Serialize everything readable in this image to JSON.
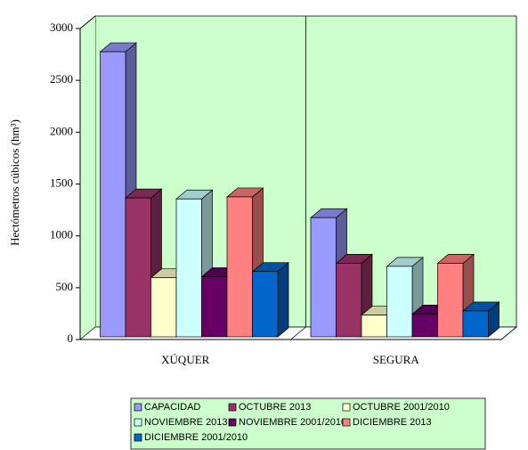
{
  "chart_data": {
    "type": "bar3d",
    "ylabel": "Hectómetros cúbicos (hm³)",
    "categories": [
      "XÚQUER",
      "SEGURA"
    ],
    "series": [
      {
        "name": "CAPACIDAD",
        "color": "#9999ff",
        "values": [
          2750,
          1150
        ]
      },
      {
        "name": "OCTUBRE 2013",
        "color": "#993366",
        "values": [
          1340,
          710
        ]
      },
      {
        "name": "OCTUBRE 2001/2010",
        "color": "#ffffcc",
        "values": [
          570,
          210
        ]
      },
      {
        "name": "NOVIEMBRE 2013",
        "color": "#ccffff",
        "values": [
          1330,
          680
        ]
      },
      {
        "name": "NOVIEMBRE 2001/2010",
        "color": "#660066",
        "values": [
          580,
          220
        ]
      },
      {
        "name": "DICIEMBRE 2013",
        "color": "#ff8080",
        "values": [
          1350,
          710
        ]
      },
      {
        "name": "DICIEMBRE 2001/2010",
        "color": "#0066cc",
        "values": [
          630,
          250
        ]
      }
    ],
    "ylim": [
      0,
      3000
    ],
    "yticks": [
      0,
      500,
      1000,
      1500,
      2000,
      2500,
      3000
    ],
    "background": "#ccffcc",
    "legend": "bottom"
  }
}
